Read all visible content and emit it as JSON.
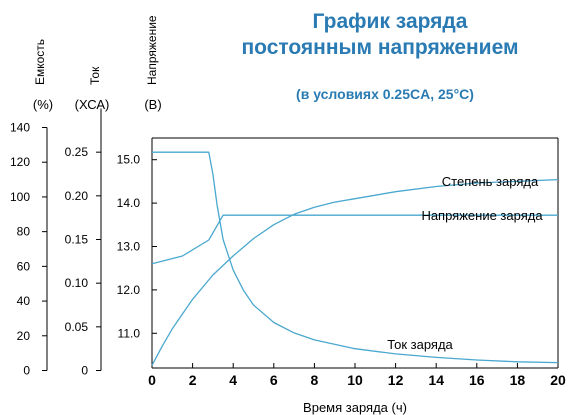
{
  "title": {
    "line1": "График заряда",
    "line2": "постоянным напряжением",
    "subtitle": "(в условиях 0.25CA, 25°C)"
  },
  "colors": {
    "title": "#2a7bb3",
    "curve": "#4aa8cf",
    "axis": "#000000"
  },
  "chart_data": {
    "type": "line",
    "xlabel": "Время заряда (ч)",
    "xlim": [
      0,
      20
    ],
    "x_ticks": [
      "0",
      "2",
      "4",
      "6",
      "8",
      "10",
      "12",
      "14",
      "16",
      "18",
      "20"
    ],
    "axes": [
      {
        "id": "capacity",
        "label": "Емкость",
        "unit": "(%)",
        "ylim": [
          0,
          140
        ],
        "ticks": [
          "0",
          "20",
          "40",
          "60",
          "80",
          "100",
          "120",
          "140"
        ]
      },
      {
        "id": "current",
        "label": "Ток",
        "unit": "(ХСА)",
        "ylim": [
          0,
          0.3
        ],
        "ticks": [
          "0",
          "0.05",
          "0.10",
          "0.15",
          "0.20",
          "0.25"
        ]
      },
      {
        "id": "voltage",
        "label": "Напряжение",
        "unit": "(В)",
        "ylim": [
          10.2,
          15.5
        ],
        "ticks": [
          "11.0",
          "12.0",
          "13.0",
          "14.0",
          "15.0"
        ]
      }
    ],
    "series": [
      {
        "name": "Степень заряда",
        "axis": "capacity",
        "x": [
          0,
          0.5,
          1,
          2,
          3,
          4,
          5,
          6,
          7,
          8,
          9,
          10,
          12,
          14,
          16,
          18,
          20
        ],
        "y": [
          3,
          14,
          24,
          41,
          55,
          66,
          76,
          84,
          90,
          94,
          97,
          99,
          103,
          106,
          108,
          109,
          110
        ]
      },
      {
        "name": "Напряжение заряда",
        "axis": "voltage",
        "x": [
          0,
          1.5,
          2.8,
          3.5,
          4,
          6,
          8,
          10,
          12,
          14,
          16,
          18,
          20
        ],
        "y": [
          12.6,
          12.78,
          13.15,
          13.72,
          13.72,
          13.72,
          13.72,
          13.72,
          13.72,
          13.72,
          13.72,
          13.72,
          13.72
        ]
      },
      {
        "name": "Ток заряда",
        "axis": "current",
        "x": [
          0,
          1,
          2,
          2.8,
          3,
          3.2,
          3.5,
          4,
          4.5,
          5,
          6,
          7,
          8,
          10,
          12,
          14,
          16,
          18,
          20
        ],
        "y": [
          0.25,
          0.25,
          0.25,
          0.25,
          0.225,
          0.19,
          0.15,
          0.115,
          0.092,
          0.075,
          0.055,
          0.043,
          0.035,
          0.025,
          0.019,
          0.015,
          0.012,
          0.01,
          0.009
        ]
      }
    ]
  }
}
